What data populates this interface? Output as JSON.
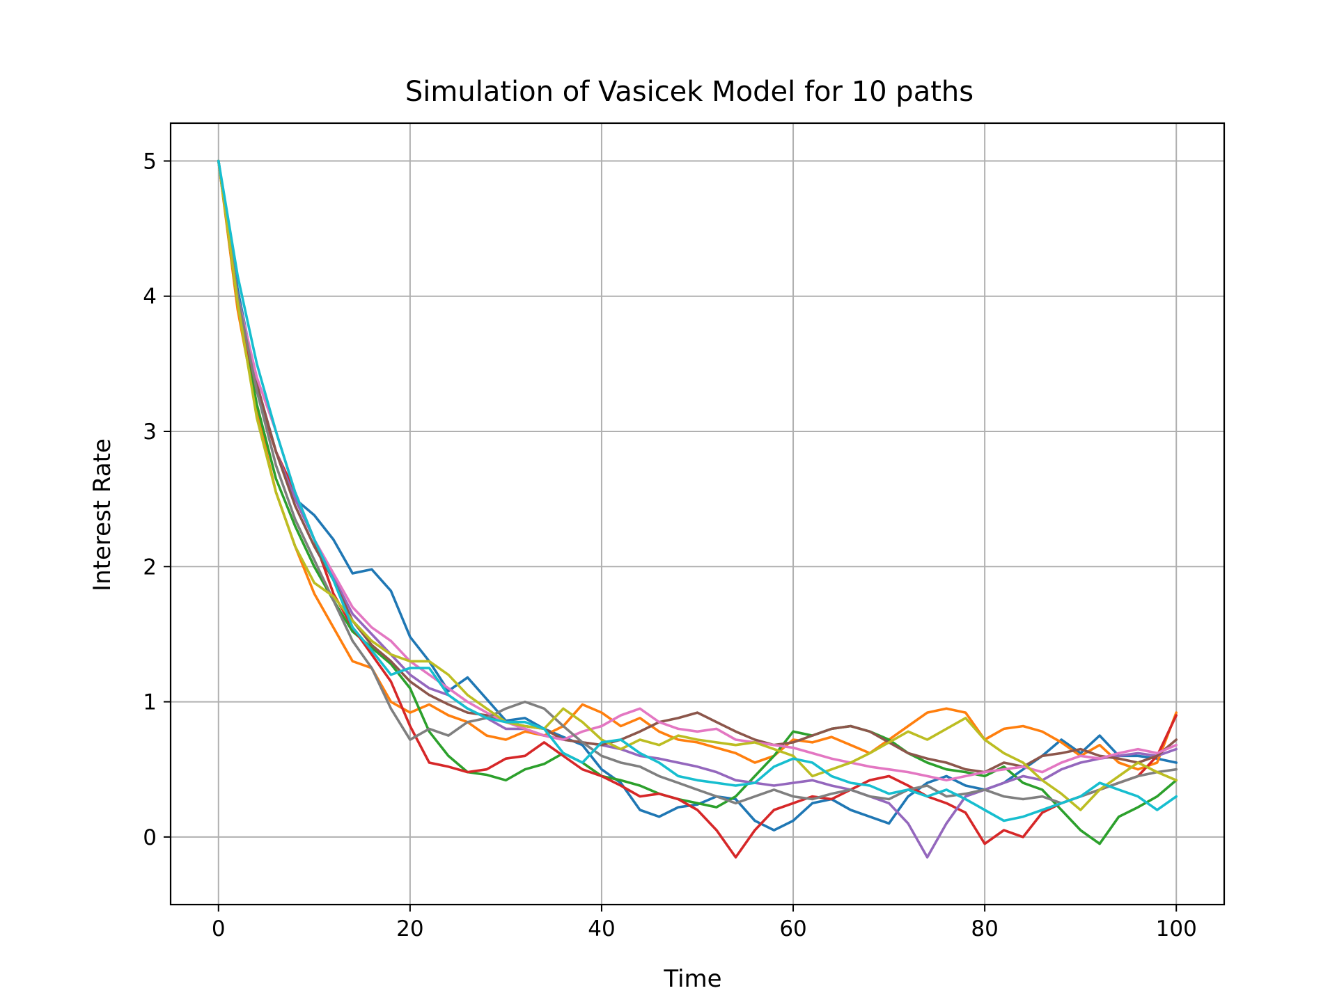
{
  "chart_data": {
    "type": "line",
    "title": "Simulation of Vasicek Model for 10 paths",
    "xlabel": "Time",
    "ylabel": "Interest Rate",
    "xlim": [
      -5,
      105
    ],
    "ylim": [
      -0.5,
      5.28
    ],
    "xticks": [
      0,
      20,
      40,
      60,
      80,
      100
    ],
    "yticks": [
      0,
      1,
      2,
      3,
      4,
      5
    ],
    "grid": true,
    "legend": "none",
    "x": [
      0,
      2,
      4,
      6,
      8,
      10,
      12,
      14,
      16,
      18,
      20,
      22,
      24,
      26,
      28,
      30,
      32,
      34,
      36,
      38,
      40,
      42,
      44,
      46,
      48,
      50,
      52,
      54,
      56,
      58,
      60,
      62,
      64,
      66,
      68,
      70,
      72,
      74,
      76,
      78,
      80,
      82,
      84,
      86,
      88,
      90,
      92,
      94,
      96,
      98,
      100
    ],
    "series": [
      {
        "color": "#1f77b4",
        "values": [
          5.0,
          4.05,
          3.35,
          2.85,
          2.5,
          2.38,
          2.2,
          1.95,
          1.98,
          1.82,
          1.48,
          1.3,
          1.08,
          1.18,
          1.02,
          0.86,
          0.88,
          0.8,
          0.74,
          0.68,
          0.5,
          0.4,
          0.2,
          0.15,
          0.22,
          0.24,
          0.3,
          0.28,
          0.12,
          0.05,
          0.12,
          0.25,
          0.28,
          0.2,
          0.15,
          0.1,
          0.3,
          0.4,
          0.45,
          0.38,
          0.35,
          0.4,
          0.5,
          0.6,
          0.72,
          0.62,
          0.75,
          0.6,
          0.6,
          0.58,
          0.55
        ]
      },
      {
        "color": "#ff7f0e",
        "values": [
          5.0,
          3.9,
          3.15,
          2.55,
          2.15,
          1.8,
          1.55,
          1.3,
          1.25,
          1.0,
          0.92,
          0.98,
          0.9,
          0.85,
          0.75,
          0.72,
          0.78,
          0.75,
          0.82,
          0.98,
          0.92,
          0.82,
          0.88,
          0.78,
          0.72,
          0.7,
          0.66,
          0.62,
          0.55,
          0.6,
          0.72,
          0.7,
          0.74,
          0.68,
          0.62,
          0.72,
          0.82,
          0.92,
          0.95,
          0.92,
          0.72,
          0.8,
          0.82,
          0.78,
          0.7,
          0.6,
          0.68,
          0.55,
          0.5,
          0.55,
          0.92
        ]
      },
      {
        "color": "#2ca02c",
        "values": [
          5.0,
          3.95,
          3.2,
          2.65,
          2.3,
          2.0,
          1.75,
          1.52,
          1.4,
          1.28,
          1.1,
          0.78,
          0.6,
          0.48,
          0.46,
          0.42,
          0.5,
          0.54,
          0.62,
          0.55,
          0.45,
          0.42,
          0.38,
          0.32,
          0.28,
          0.25,
          0.22,
          0.3,
          0.45,
          0.6,
          0.78,
          0.75,
          0.8,
          0.82,
          0.78,
          0.72,
          0.62,
          0.55,
          0.5,
          0.48,
          0.45,
          0.52,
          0.4,
          0.35,
          0.2,
          0.05,
          -0.05,
          0.15,
          0.22,
          0.3,
          0.42
        ]
      },
      {
        "color": "#d62728",
        "values": [
          5.0,
          3.95,
          3.3,
          2.85,
          2.55,
          2.2,
          1.8,
          1.55,
          1.35,
          1.15,
          0.82,
          0.55,
          0.52,
          0.48,
          0.5,
          0.58,
          0.6,
          0.7,
          0.6,
          0.5,
          0.45,
          0.38,
          0.3,
          0.32,
          0.28,
          0.2,
          0.05,
          -0.15,
          0.05,
          0.2,
          0.25,
          0.3,
          0.28,
          0.35,
          0.42,
          0.45,
          0.38,
          0.3,
          0.25,
          0.18,
          -0.05,
          0.05,
          0.0,
          0.18,
          0.25,
          0.3,
          0.35,
          0.4,
          0.45,
          0.6,
          0.9
        ]
      },
      {
        "color": "#9467bd",
        "values": [
          5.0,
          4.0,
          3.35,
          2.85,
          2.5,
          2.2,
          1.92,
          1.65,
          1.5,
          1.35,
          1.2,
          1.1,
          1.05,
          0.95,
          0.88,
          0.8,
          0.8,
          0.75,
          0.72,
          0.7,
          0.68,
          0.65,
          0.6,
          0.58,
          0.55,
          0.52,
          0.48,
          0.42,
          0.4,
          0.38,
          0.4,
          0.42,
          0.38,
          0.35,
          0.3,
          0.25,
          0.1,
          -0.15,
          0.1,
          0.3,
          0.35,
          0.4,
          0.45,
          0.42,
          0.5,
          0.55,
          0.58,
          0.6,
          0.62,
          0.6,
          0.65
        ]
      },
      {
        "color": "#8c564b",
        "values": [
          5.0,
          4.0,
          3.35,
          2.85,
          2.45,
          2.15,
          1.9,
          1.6,
          1.42,
          1.3,
          1.15,
          1.05,
          0.98,
          0.92,
          0.9,
          0.85,
          0.82,
          0.8,
          0.72,
          0.7,
          0.68,
          0.72,
          0.78,
          0.85,
          0.88,
          0.92,
          0.85,
          0.78,
          0.72,
          0.68,
          0.7,
          0.75,
          0.8,
          0.82,
          0.78,
          0.7,
          0.62,
          0.58,
          0.55,
          0.5,
          0.48,
          0.55,
          0.52,
          0.6,
          0.62,
          0.65,
          0.6,
          0.58,
          0.55,
          0.6,
          0.72
        ]
      },
      {
        "color": "#e377c2",
        "values": [
          5.0,
          4.0,
          3.4,
          3.0,
          2.55,
          2.2,
          1.95,
          1.7,
          1.55,
          1.45,
          1.3,
          1.2,
          1.1,
          1.0,
          0.92,
          0.85,
          0.8,
          0.75,
          0.72,
          0.78,
          0.82,
          0.9,
          0.95,
          0.85,
          0.8,
          0.78,
          0.8,
          0.72,
          0.7,
          0.68,
          0.66,
          0.62,
          0.58,
          0.55,
          0.52,
          0.5,
          0.48,
          0.45,
          0.42,
          0.45,
          0.48,
          0.5,
          0.52,
          0.48,
          0.55,
          0.6,
          0.58,
          0.62,
          0.65,
          0.62,
          0.68
        ]
      },
      {
        "color": "#7f7f7f",
        "values": [
          5.0,
          4.0,
          3.3,
          2.75,
          2.35,
          2.05,
          1.75,
          1.45,
          1.25,
          0.95,
          0.72,
          0.8,
          0.75,
          0.85,
          0.88,
          0.95,
          1.0,
          0.95,
          0.82,
          0.7,
          0.6,
          0.55,
          0.52,
          0.45,
          0.4,
          0.35,
          0.3,
          0.25,
          0.3,
          0.35,
          0.3,
          0.28,
          0.32,
          0.35,
          0.3,
          0.28,
          0.35,
          0.38,
          0.3,
          0.32,
          0.35,
          0.3,
          0.28,
          0.3,
          0.25,
          0.3,
          0.35,
          0.4,
          0.45,
          0.48,
          0.5
        ]
      },
      {
        "color": "#bcbd22",
        "values": [
          5.0,
          3.95,
          3.1,
          2.55,
          2.15,
          1.88,
          1.78,
          1.6,
          1.45,
          1.35,
          1.3,
          1.3,
          1.2,
          1.05,
          0.95,
          0.85,
          0.82,
          0.8,
          0.95,
          0.85,
          0.72,
          0.65,
          0.72,
          0.68,
          0.75,
          0.72,
          0.7,
          0.68,
          0.7,
          0.65,
          0.6,
          0.45,
          0.5,
          0.55,
          0.62,
          0.7,
          0.78,
          0.72,
          0.8,
          0.88,
          0.72,
          0.62,
          0.55,
          0.42,
          0.32,
          0.2,
          0.35,
          0.45,
          0.55,
          0.48,
          0.42
        ]
      },
      {
        "color": "#17becf",
        "values": [
          5.0,
          4.15,
          3.5,
          3.0,
          2.55,
          2.2,
          1.9,
          1.55,
          1.38,
          1.2,
          1.25,
          1.25,
          1.05,
          0.95,
          0.88,
          0.85,
          0.85,
          0.8,
          0.62,
          0.55,
          0.7,
          0.72,
          0.62,
          0.55,
          0.45,
          0.42,
          0.4,
          0.38,
          0.4,
          0.52,
          0.58,
          0.55,
          0.45,
          0.4,
          0.38,
          0.32,
          0.35,
          0.3,
          0.35,
          0.28,
          0.2,
          0.12,
          0.15,
          0.2,
          0.25,
          0.3,
          0.4,
          0.35,
          0.3,
          0.2,
          0.3
        ]
      }
    ]
  }
}
